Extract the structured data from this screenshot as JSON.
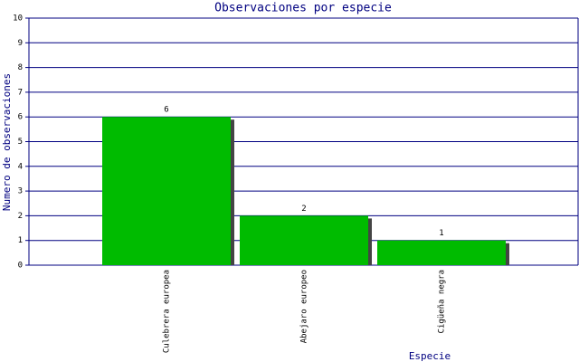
{
  "chart_data": {
    "type": "bar",
    "title": "Observaciones por especie",
    "x_label": "Especie",
    "y_label": "Numero de observaciones",
    "categories": [
      "Culebrera europea",
      "Abejaro europeo",
      "Cigüeña negra"
    ],
    "values": [
      6,
      2,
      1
    ],
    "color": "#00bb00",
    "shadow_color": "#444444",
    "ylim": [
      0,
      10
    ],
    "yticks": [
      0,
      1,
      2,
      3,
      4,
      5,
      6,
      7,
      8,
      9,
      10
    ],
    "grid": true
  }
}
